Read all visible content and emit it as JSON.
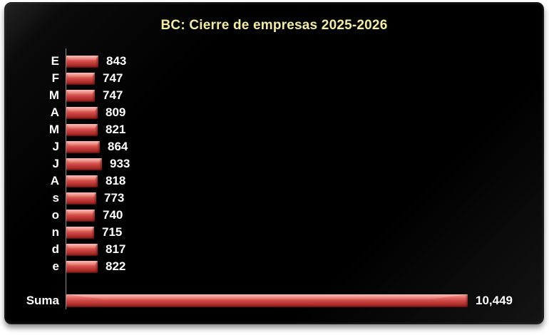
{
  "frame": {
    "background": "#000000",
    "outer_background": "#ffffff"
  },
  "chart_data": {
    "type": "bar",
    "orientation": "horizontal",
    "title": "BC: Cierre de empresas 2025-2026",
    "title_color": "#f2eda1",
    "background": "#000000",
    "bar_color": "#cf4b46",
    "label_color": "#ffffff",
    "axis_line_color": "#a8a8a8",
    "gridlines": false,
    "legend": "none",
    "xlim": [
      0,
      10449
    ],
    "categories": [
      "E",
      "F",
      "M",
      "A",
      "M",
      "J",
      "J",
      "A",
      "s",
      "o",
      "n",
      "d",
      "e"
    ],
    "values": [
      843,
      747,
      747,
      809,
      821,
      864,
      933,
      818,
      773,
      740,
      715,
      817,
      822
    ],
    "value_labels": [
      "843",
      "747",
      "747",
      "809",
      "821",
      "864",
      "933",
      "818",
      "773",
      "740",
      "715",
      "817",
      "822"
    ],
    "total": {
      "label": "Suma",
      "value": 10449,
      "value_label": "10,449"
    }
  }
}
